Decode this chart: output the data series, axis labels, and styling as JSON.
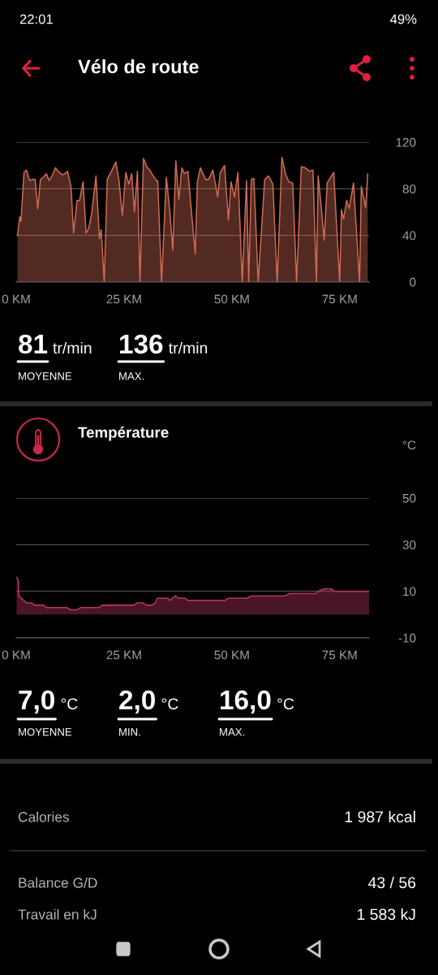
{
  "chart_data": [
    {
      "type": "other",
      "title": "Vélo de route",
      "annotations": [
        "22:01",
        "49%"
      ]
    },
    {
      "type": "area",
      "color": "#cf6a52",
      "x": [
        0.3,
        0.8,
        1.1,
        1.8,
        2.4,
        3.1,
        3.8,
        4.4,
        5.0,
        5.6,
        6.3,
        7.0,
        7.6,
        8.3,
        9.1,
        9.7,
        10.7,
        11.3,
        11.9,
        12.7,
        13.3,
        14.1,
        14.7,
        15.5,
        16.2,
        16.8,
        17.5,
        18.5,
        19.3,
        19.7,
        20.4,
        21.1,
        22.2,
        23.1,
        23.8,
        24.6,
        25.4,
        26.1,
        26.8,
        27.4,
        28.1,
        28.7,
        29.5,
        30.4,
        31.0,
        31.6,
        32.5,
        32.8,
        33.7,
        34.8,
        35.6,
        36.3,
        37.0,
        37.7,
        38.4,
        39.0,
        39.8,
        41.5,
        42.0,
        42.7,
        43.9,
        44.6,
        45.6,
        46.7,
        47.3,
        48.3,
        49.2,
        49.8,
        50.6,
        51.4,
        52.4,
        53.4,
        53.9,
        54.5,
        55.1,
        56.1,
        57.6,
        58.5,
        59.5,
        60.5,
        61.6,
        62.5,
        63.2,
        64.1,
        65.0,
        66.1,
        67.0,
        68.0,
        68.8,
        69.6,
        70.0,
        70.6,
        71.4,
        72.1,
        73.6,
        75.0,
        75.4,
        75.9,
        76.6,
        77.2,
        78.2,
        79.6,
        80.0,
        81.0,
        81.5
      ],
      "values": [
        40,
        56,
        52,
        94,
        96,
        87,
        88,
        88,
        63,
        88,
        90,
        93,
        87,
        91,
        98,
        95,
        92,
        93,
        95,
        82,
        42,
        70,
        70,
        86,
        42,
        46,
        59,
        91,
        37,
        45,
        0,
        88,
        96,
        103,
        88,
        57,
        94,
        84,
        93,
        60,
        95,
        0,
        106,
        98,
        96,
        92,
        87,
        87,
        0,
        90,
        61,
        27,
        104,
        71,
        98,
        93,
        95,
        24,
        86,
        98,
        88,
        88,
        96,
        73,
        94,
        100,
        53,
        86,
        73,
        94,
        0,
        87,
        0,
        88,
        89,
        0,
        88,
        91,
        84,
        0,
        107,
        92,
        86,
        85,
        0,
        99,
        98,
        95,
        96,
        0,
        91,
        69,
        36,
        85,
        94,
        0,
        62,
        54,
        70,
        63,
        85,
        0,
        82,
        64,
        93
      ],
      "xlim": [
        0,
        81.8
      ],
      "xticks": [
        {
          "value": 0,
          "label": "0 KM"
        },
        {
          "value": 25,
          "label": "25 KM"
        },
        {
          "value": 50,
          "label": "50 KM"
        },
        {
          "value": 75,
          "label": "75 KM"
        }
      ],
      "ylim": [
        0,
        120
      ],
      "yticks": [
        0,
        40,
        80,
        120
      ],
      "grid": "y",
      "annotations": [
        "81",
        "tr/min",
        "MOYENNE",
        "136",
        "tr/min",
        "MAX."
      ]
    },
    {
      "type": "area",
      "title": "Température",
      "ylabel": "°C",
      "color": "#b8345f",
      "x": [
        0.1,
        0.5,
        0.6,
        0.9,
        2.4,
        3.5,
        4.3,
        6.3,
        7.1,
        11.8,
        12.6,
        14.0,
        15.0,
        19.2,
        19.9,
        27.3,
        28.1,
        29.4,
        30.2,
        31.5,
        32.2,
        32.7,
        35.1,
        35.6,
        36.9,
        37.7,
        39.0,
        39.9,
        48.3,
        49.2,
        53.5,
        54.5,
        62.3,
        63.4,
        69.4,
        70.0,
        71.3,
        73.1,
        73.8,
        81.8
      ],
      "values": [
        16,
        14.5,
        8,
        7.5,
        5,
        5,
        4,
        4,
        3,
        3,
        2,
        2,
        3,
        3,
        4,
        4,
        5,
        5,
        4,
        4,
        5,
        7,
        7,
        6,
        8,
        7,
        7,
        6,
        6,
        7,
        7,
        8,
        8,
        9,
        9,
        10,
        11,
        11,
        10,
        10
      ],
      "xlim": [
        0,
        81.8
      ],
      "xticks": [
        {
          "value": 0,
          "label": "0 KM"
        },
        {
          "value": 25,
          "label": "25 KM"
        },
        {
          "value": 50,
          "label": "50 KM"
        },
        {
          "value": 75,
          "label": "75 KM"
        }
      ],
      "ylim": [
        -10,
        50
      ],
      "yticks": [
        -10,
        10,
        30,
        50
      ],
      "grid": "y",
      "annotations": [
        "7,0",
        "°C",
        "MOYENNE",
        "2,0",
        "°C",
        "MIN.",
        "16,0",
        "°C",
        "MAX."
      ]
    },
    {
      "type": "other",
      "annotations": [
        "Calories",
        "1 987 kcal",
        "Balance G/D",
        "43 / 56",
        "Travail en kJ",
        "1 583 kJ"
      ]
    }
  ]
}
